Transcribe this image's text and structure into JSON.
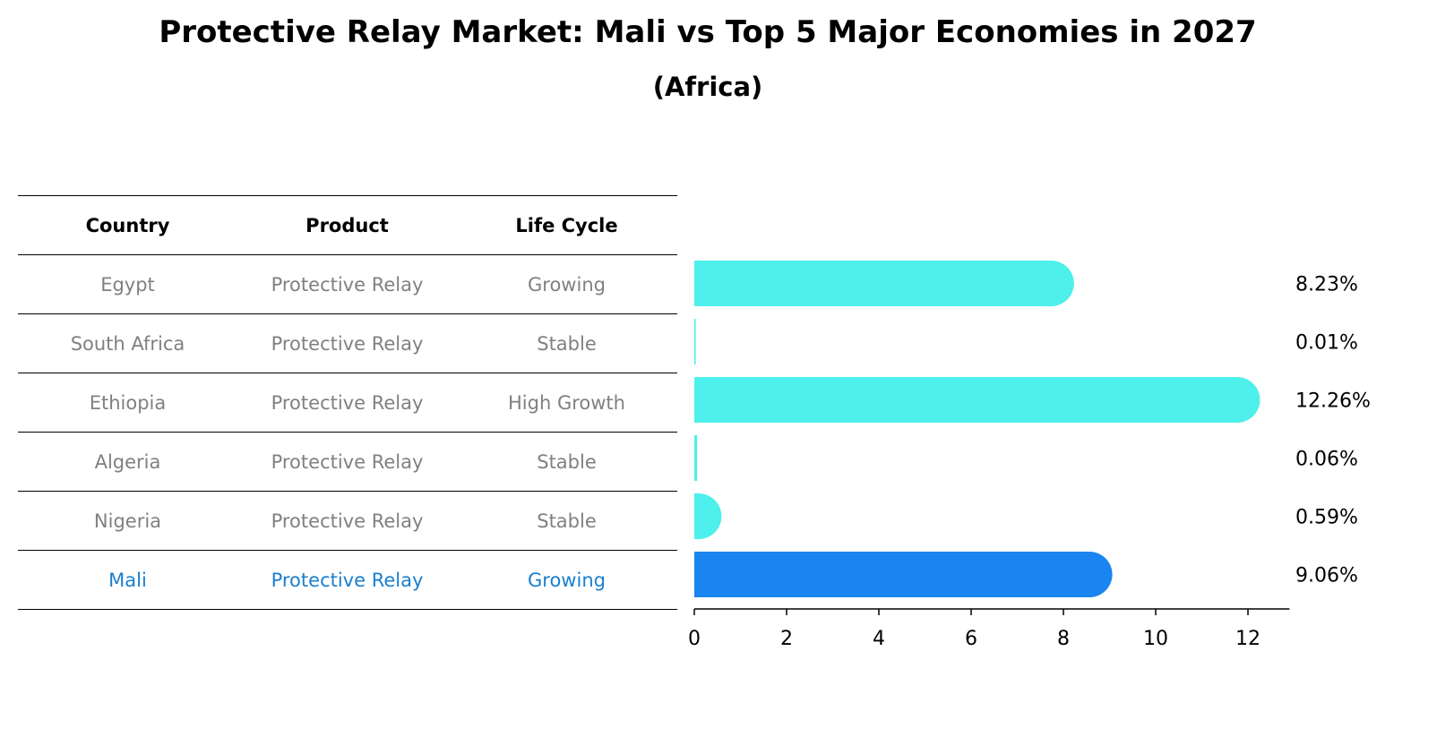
{
  "title": "Protective Relay Market: Mali vs Top 5 Major Economies in 2027",
  "subtitle": "(Africa)",
  "table": {
    "headers": [
      "Country",
      "Product",
      "Life Cycle"
    ],
    "rows": [
      {
        "country": "Egypt",
        "product": "Protective Relay",
        "life_cycle": "Growing"
      },
      {
        "country": "South Africa",
        "product": "Protective Relay",
        "life_cycle": "Stable"
      },
      {
        "country": "Ethiopia",
        "product": "Protective Relay",
        "life_cycle": "High Growth"
      },
      {
        "country": "Algeria",
        "product": "Protective Relay",
        "life_cycle": "Stable"
      },
      {
        "country": "Nigeria",
        "product": "Protective Relay",
        "life_cycle": "Stable"
      },
      {
        "country": "Mali",
        "product": "Protective Relay",
        "life_cycle": "Growing"
      }
    ]
  },
  "chart_data": {
    "type": "bar",
    "orientation": "horizontal",
    "categories": [
      "Egypt",
      "South Africa",
      "Ethiopia",
      "Algeria",
      "Nigeria",
      "Mali"
    ],
    "values": [
      8.23,
      0.01,
      12.26,
      0.06,
      0.59,
      9.06
    ],
    "value_labels": [
      "8.23%",
      "0.01%",
      "12.26%",
      "0.06%",
      "0.59%",
      "9.06%"
    ],
    "xlim": [
      0,
      12.9
    ],
    "xticks": [
      0,
      2,
      4,
      6,
      8,
      10,
      12
    ],
    "bar_color": "#4df0ea",
    "highlight_color": "#1a85f0",
    "highlight_index": 5
  }
}
